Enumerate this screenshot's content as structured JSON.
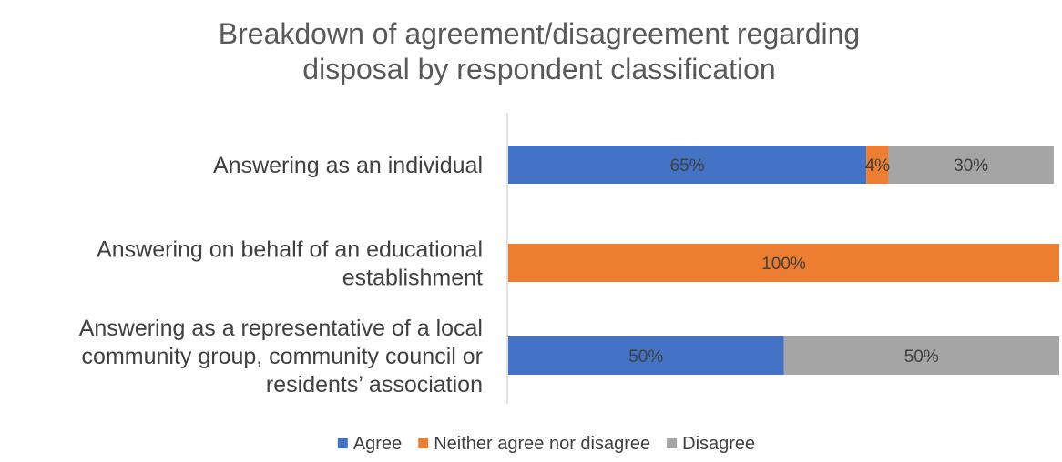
{
  "chart_data": {
    "type": "bar",
    "orientation": "horizontal",
    "stacked": true,
    "title": "Breakdown of agreement/disagreement regarding disposal by respondent classification",
    "title_lines": [
      "Breakdown of agreement/disagreement regarding",
      "disposal by respondent classification"
    ],
    "categories": [
      "Answering as an individual",
      "Answering on behalf of an educational establishment",
      "Answering as a representative of a local community group, community council or residents’ association"
    ],
    "category_lines": [
      [
        "Answering as an individual"
      ],
      [
        "Answering on behalf of an educational",
        "establishment"
      ],
      [
        "Answering as a representative of a local",
        "community group, community council or",
        "residents’ association"
      ]
    ],
    "series": [
      {
        "name": "Agree",
        "color": "#4472C4",
        "values": [
          65,
          0,
          50
        ],
        "labels": [
          "65%",
          "",
          "50%"
        ]
      },
      {
        "name": "Neither agree nor disagree",
        "color": "#ED7D31",
        "values": [
          4,
          100,
          0
        ],
        "labels": [
          "4%",
          "100%",
          ""
        ]
      },
      {
        "name": "Disagree",
        "color": "#A5A5A5",
        "values": [
          30,
          0,
          50
        ],
        "labels": [
          "30%",
          "",
          "50%"
        ]
      }
    ],
    "xlim": [
      0,
      100
    ],
    "grid": false,
    "legend_position": "bottom",
    "xlabel": "",
    "ylabel": ""
  }
}
